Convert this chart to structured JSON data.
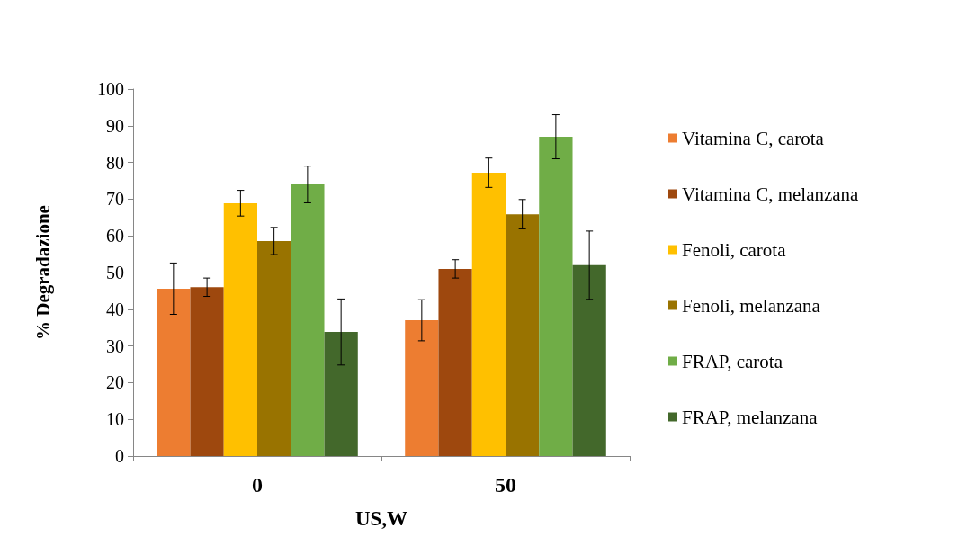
{
  "chart_data": {
    "type": "bar",
    "xlabel": "US,W",
    "ylabel": "% Degradazione",
    "categories": [
      "0",
      "50"
    ],
    "ylim": [
      0,
      100
    ],
    "yticks": [
      0,
      10,
      20,
      30,
      40,
      50,
      60,
      70,
      80,
      90,
      100
    ],
    "grid": false,
    "legend": "right",
    "series": [
      {
        "name": "Vitamina C, carota",
        "color": "#ed7d31",
        "values": [
          45.6,
          37
        ],
        "errors": [
          7,
          5.6
        ]
      },
      {
        "name": "Vitamina C, melanzana",
        "color": "#9e480e",
        "values": [
          46,
          51
        ],
        "errors": [
          2.5,
          2.5
        ]
      },
      {
        "name": "Fenoli, carota",
        "color": "#ffc000",
        "values": [
          68.9,
          77.2
        ],
        "errors": [
          3.5,
          4
        ]
      },
      {
        "name": "Fenoli, melanzana",
        "color": "#997300",
        "values": [
          58.6,
          65.9
        ],
        "errors": [
          3.7,
          4
        ]
      },
      {
        "name": "FRAP, carota",
        "color": "#70ad47",
        "values": [
          74,
          87
        ],
        "errors": [
          5,
          6
        ]
      },
      {
        "name": "FRAP, melanzana",
        "color": "#43682b",
        "values": [
          33.8,
          52
        ],
        "errors": [
          9,
          9.3
        ]
      }
    ]
  }
}
